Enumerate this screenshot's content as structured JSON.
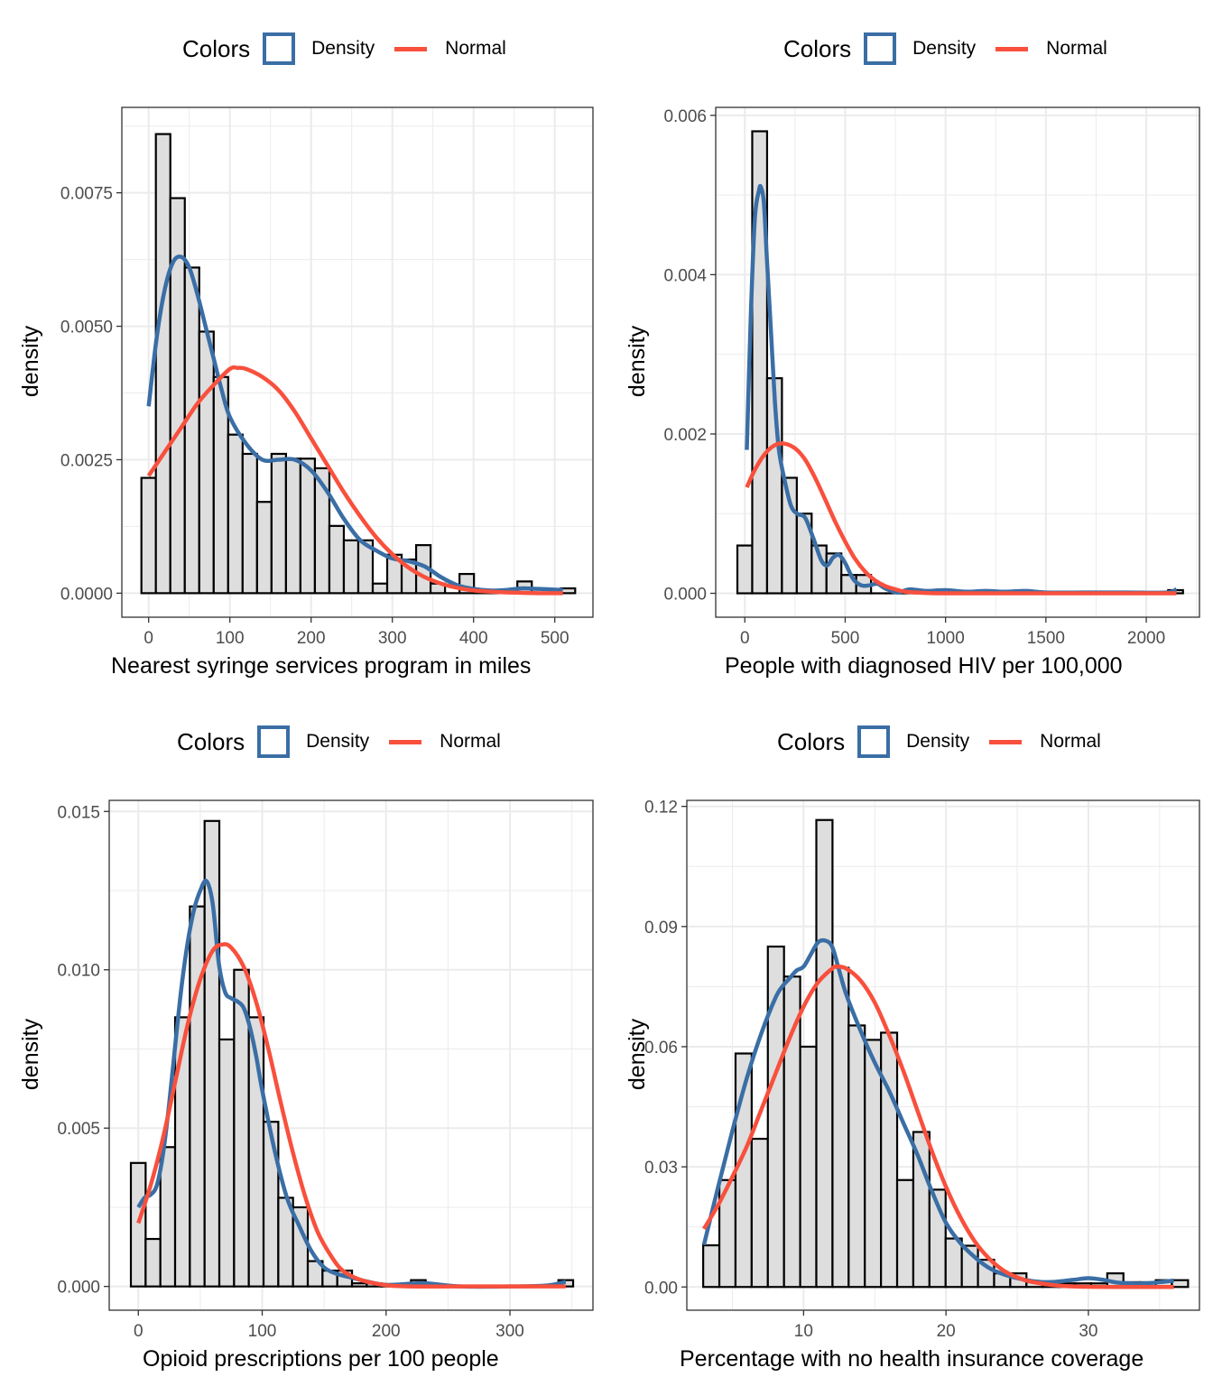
{
  "legend": {
    "title": "Colors",
    "density_label": "Density",
    "normal_label": "Normal",
    "density_color": "#3A6EA5",
    "normal_color": "#F8503D"
  },
  "colors": {
    "bar_fill": "#DEDEDE",
    "bar_stroke": "#000000",
    "grid": "#EBEBEB",
    "axis_text": "#4D4D4D"
  },
  "chart_data": [
    {
      "type": "bar",
      "subtype": "histogram_with_density_and_normal_curves",
      "title": "",
      "xlabel": "Nearest syringe services program in miles",
      "ylabel": "density",
      "xlim": [
        -33,
        547
      ],
      "ylim": [
        -0.00045,
        0.0091
      ],
      "xticks": [
        0,
        100,
        200,
        300,
        400,
        500
      ],
      "xtick_labels": [
        "0",
        "100",
        "200",
        "300",
        "400",
        "500"
      ],
      "yticks": [
        0,
        0.0025,
        0.005,
        0.0075
      ],
      "ytick_labels": [
        "0.0000",
        "0.0025",
        "0.0050",
        "0.0075"
      ],
      "grid": true,
      "legend_position": "top",
      "bin_start": -8.9,
      "bin_width": 17.8,
      "values": [
        0.00216,
        0.0086,
        0.0074,
        0.0061,
        0.0049,
        0.00405,
        0.00297,
        0.00261,
        0.00171,
        0.00261,
        0.00252,
        0.00252,
        0.00234,
        0.00126,
        0.00099,
        0.00099,
        0.00018,
        0.00072,
        0.00063,
        0.0009,
        0.00018,
        0.0,
        0.00036,
        0.0,
        0.0,
        0.0,
        0.00022,
        0.0,
        0.0,
        9e-05
      ],
      "series": [
        {
          "name": "Density",
          "x": [
            0,
            10,
            20,
            30,
            40,
            50,
            60,
            70,
            80,
            90,
            100,
            120,
            140,
            160,
            180,
            200,
            220,
            240,
            260,
            280,
            300,
            320,
            340,
            360,
            380,
            400,
            420,
            440,
            460,
            480,
            510
          ],
          "values": [
            0.0035,
            0.0048,
            0.0057,
            0.0062,
            0.0063,
            0.0061,
            0.0056,
            0.005,
            0.0044,
            0.0038,
            0.0033,
            0.0028,
            0.0025,
            0.0025,
            0.0025,
            0.0023,
            0.0019,
            0.0014,
            0.001,
            0.0008,
            0.00065,
            0.0006,
            0.0005,
            0.0003,
            0.00015,
            8e-05,
            5e-05,
            6e-05,
            9e-05,
            8e-05,
            6e-05
          ]
        },
        {
          "name": "Normal",
          "x": [
            0,
            20,
            40,
            60,
            80,
            100,
            110,
            120,
            140,
            160,
            180,
            200,
            220,
            240,
            260,
            280,
            300,
            320,
            340,
            360,
            380,
            400,
            420,
            450,
            480,
            510
          ],
          "values": [
            0.0022,
            0.00265,
            0.0031,
            0.00355,
            0.0039,
            0.0042,
            0.00422,
            0.0042,
            0.00405,
            0.0038,
            0.0034,
            0.0029,
            0.0024,
            0.0019,
            0.00145,
            0.00105,
            0.00073,
            0.00048,
            0.0003,
            0.00018,
            0.0001,
            5e-05,
            3e-05,
            1e-05,
            0.0,
            0.0
          ]
        }
      ]
    },
    {
      "type": "bar",
      "subtype": "histogram_with_density_and_normal_curves",
      "title": "",
      "xlabel": "People with diagnosed HIV per 100,000",
      "ylabel": "density",
      "xlim": [
        -145,
        2265
      ],
      "ylim": [
        -0.0003,
        0.0061
      ],
      "xticks": [
        0,
        500,
        1000,
        1500,
        2000
      ],
      "xtick_labels": [
        "0",
        "500",
        "1000",
        "1500",
        "2000"
      ],
      "yticks": [
        0,
        0.002,
        0.004,
        0.006
      ],
      "ytick_labels": [
        "0.000",
        "0.002",
        "0.004",
        "0.006"
      ],
      "grid": true,
      "legend_position": "top",
      "bin_start": -37,
      "bin_width": 74,
      "values": [
        0.0006,
        0.0058,
        0.0027,
        0.00145,
        0.001,
        0.0006,
        0.0005,
        0.00023,
        0.00023,
        0.0,
        0.0,
        0.0,
        0.0,
        0.0,
        0.0,
        0.0,
        0.0,
        0.0,
        0.0,
        0.0,
        0.0,
        0.0,
        0.0,
        0.0,
        0.0,
        0.0,
        0.0,
        0.0,
        0.0,
        4e-05
      ],
      "series": [
        {
          "name": "Density",
          "x": [
            10,
            30,
            50,
            70,
            80,
            95,
            110,
            130,
            150,
            170,
            200,
            230,
            260,
            300,
            340,
            380,
            410,
            440,
            470,
            500,
            540,
            580,
            620,
            660,
            700,
            760,
            820,
            900,
            1000,
            1100,
            1200,
            1300,
            1400,
            1500,
            1700,
            1900,
            2100,
            2150
          ],
          "values": [
            0.0018,
            0.0035,
            0.0047,
            0.00505,
            0.0051,
            0.0049,
            0.0042,
            0.0033,
            0.0024,
            0.0018,
            0.0014,
            0.0011,
            0.001,
            0.00095,
            0.0007,
            0.00042,
            0.00035,
            0.00045,
            0.00048,
            0.00038,
            0.00018,
            0.0001,
            0.0001,
            0.00012,
            6e-05,
            1e-05,
            5e-05,
            3e-05,
            4e-05,
            2e-05,
            3e-05,
            2e-05,
            3e-05,
            1e-05,
            1e-05,
            1e-05,
            1e-05,
            5e-05
          ]
        },
        {
          "name": "Normal",
          "x": [
            10,
            50,
            100,
            150,
            195,
            250,
            300,
            350,
            400,
            450,
            500,
            550,
            600,
            650,
            700,
            750,
            800,
            900,
            1000,
            1500,
            2150
          ],
          "values": [
            0.00133,
            0.00155,
            0.00175,
            0.00186,
            0.00188,
            0.00182,
            0.00168,
            0.00145,
            0.00118,
            0.0009,
            0.00065,
            0.00043,
            0.00027,
            0.00016,
            9e-05,
            5e-05,
            2e-05,
            5e-06,
            0.0,
            0.0,
            0.0
          ]
        }
      ]
    },
    {
      "type": "bar",
      "subtype": "histogram_with_density_and_normal_curves",
      "title": "",
      "xlabel": "Opioid prescriptions per 100 people",
      "ylabel": "density",
      "xlim": [
        -23.5,
        367
      ],
      "ylim": [
        -0.00075,
        0.01535
      ],
      "xticks": [
        0,
        100,
        200,
        300
      ],
      "xtick_labels": [
        "0",
        "100",
        "200",
        "300"
      ],
      "yticks": [
        0,
        0.005,
        0.01,
        0.015
      ],
      "ytick_labels": [
        "0.000",
        "0.005",
        "0.010",
        "0.015"
      ],
      "grid": true,
      "legend_position": "top",
      "bin_start": -6,
      "bin_width": 11.9,
      "values": [
        0.0039,
        0.0015,
        0.0044,
        0.0085,
        0.012,
        0.0147,
        0.0078,
        0.01,
        0.0085,
        0.0052,
        0.0028,
        0.0025,
        0.0008,
        0.0005,
        0.0005,
        0.0001,
        0.0001,
        0.0,
        0.0,
        0.0002,
        0.0,
        0.0,
        0.0,
        0.0,
        0.0,
        0.0,
        0.0,
        0.0,
        0.0,
        0.0002
      ],
      "series": [
        {
          "name": "Density",
          "x": [
            0,
            5,
            10,
            15,
            20,
            25,
            30,
            35,
            40,
            45,
            50,
            55,
            60,
            65,
            70,
            75,
            80,
            85,
            90,
            95,
            100,
            110,
            120,
            130,
            140,
            150,
            160,
            170,
            180,
            200,
            230,
            260,
            300,
            330,
            345
          ],
          "values": [
            0.0025,
            0.0028,
            0.0029,
            0.0032,
            0.0042,
            0.0058,
            0.0077,
            0.0095,
            0.0109,
            0.0119,
            0.0125,
            0.0128,
            0.0121,
            0.0102,
            0.0093,
            0.0091,
            0.009,
            0.0088,
            0.0082,
            0.0073,
            0.0062,
            0.0043,
            0.0028,
            0.0019,
            0.0011,
            0.0006,
            0.0004,
            0.0003,
            0.0002,
            5e-05,
            0.0001,
            0.0,
            0.0,
            3e-05,
            0.00015
          ]
        },
        {
          "name": "Normal",
          "x": [
            0,
            10,
            20,
            30,
            40,
            50,
            60,
            68,
            75,
            85,
            95,
            105,
            115,
            125,
            135,
            145,
            155,
            165,
            180,
            200,
            220,
            260,
            345
          ],
          "values": [
            0.002,
            0.0032,
            0.0047,
            0.0065,
            0.0083,
            0.0097,
            0.0106,
            0.0108,
            0.0107,
            0.0101,
            0.009,
            0.0075,
            0.0058,
            0.0042,
            0.0028,
            0.0017,
            0.001,
            0.0005,
            0.0002,
            4e-05,
            0.0,
            0.0,
            0.0
          ]
        }
      ]
    },
    {
      "type": "bar",
      "subtype": "histogram_with_density_and_normal_curves",
      "title": "",
      "xlabel": "Percentage with no health insurance coverage",
      "ylabel": "density",
      "xlim": [
        1.8,
        37.8
      ],
      "ylim": [
        -0.0058,
        0.1215
      ],
      "xticks": [
        10,
        20,
        30
      ],
      "xtick_labels": [
        "10",
        "20",
        "30"
      ],
      "yticks": [
        0,
        0.03,
        0.06,
        0.09,
        0.12
      ],
      "ytick_labels": [
        "0.00",
        "0.03",
        "0.06",
        "0.09",
        "0.12"
      ],
      "grid": true,
      "legend_position": "top",
      "bin_start": 2.95,
      "bin_width": 1.135,
      "values": [
        0.0104,
        0.0267,
        0.0583,
        0.037,
        0.085,
        0.0775,
        0.06,
        0.1166,
        0.0797,
        0.0653,
        0.0617,
        0.0635,
        0.0267,
        0.0387,
        0.0243,
        0.0121,
        0.0103,
        0.0068,
        0.0034,
        0.0034,
        0.0012,
        0.0012,
        0.0009,
        0.0009,
        0.0009,
        0.0034,
        0.0012,
        0.0012,
        0.0017,
        0.0017
      ],
      "series": [
        {
          "name": "Density",
          "x": [
            3,
            4,
            5,
            6,
            7,
            8,
            8.5,
            9,
            9.5,
            10,
            10.5,
            11,
            11.5,
            12,
            12.5,
            13,
            14,
            15,
            16,
            17,
            18,
            19,
            20,
            21,
            22,
            23,
            24,
            25,
            26,
            27,
            28,
            29,
            30,
            31,
            32,
            33,
            34,
            35,
            36
          ],
          "values": [
            0.0105,
            0.025,
            0.039,
            0.052,
            0.063,
            0.072,
            0.075,
            0.077,
            0.079,
            0.08,
            0.083,
            0.086,
            0.0865,
            0.085,
            0.079,
            0.073,
            0.064,
            0.056,
            0.049,
            0.041,
            0.033,
            0.024,
            0.016,
            0.011,
            0.0075,
            0.0048,
            0.0032,
            0.0022,
            0.0015,
            0.0012,
            0.0014,
            0.0018,
            0.0022,
            0.0018,
            0.0011,
            0.0009,
            0.0009,
            0.0012,
            0.0016
          ]
        },
        {
          "name": "Normal",
          "x": [
            3,
            4,
            5,
            6,
            7,
            8,
            9,
            10,
            11,
            12,
            12.3,
            13,
            14,
            15,
            16,
            17,
            18,
            19,
            20,
            21,
            22,
            23,
            24,
            25,
            26,
            28,
            30,
            33,
            36
          ],
          "values": [
            0.0145,
            0.0205,
            0.0275,
            0.035,
            0.044,
            0.053,
            0.062,
            0.07,
            0.076,
            0.0795,
            0.08,
            0.0795,
            0.0765,
            0.071,
            0.063,
            0.054,
            0.044,
            0.034,
            0.025,
            0.0175,
            0.0115,
            0.0072,
            0.0042,
            0.0024,
            0.0013,
            0.0003,
            5e-05,
            0.0,
            0.0
          ]
        }
      ]
    }
  ]
}
